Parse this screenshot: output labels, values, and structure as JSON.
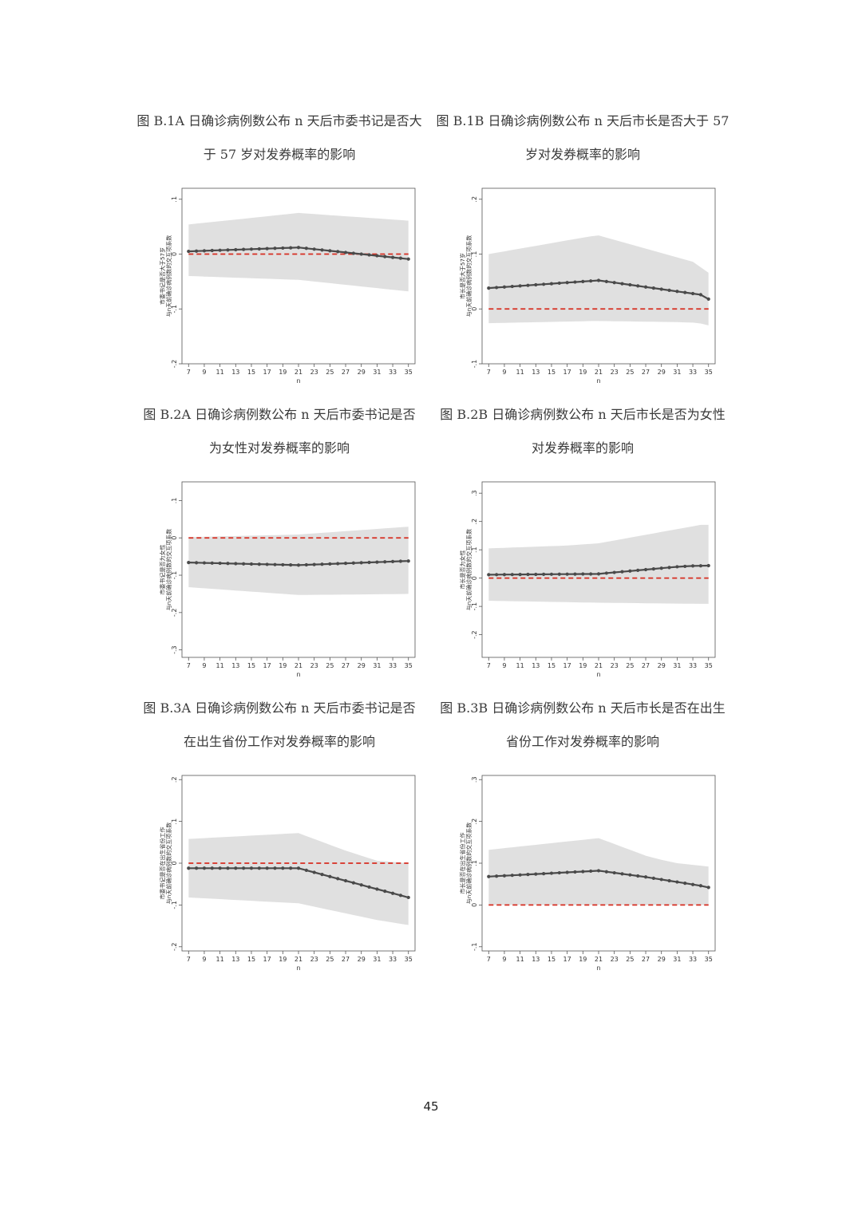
{
  "page_number": "45",
  "colors": {
    "ci_band": "#e0e0e0",
    "line": "#4a4a4a",
    "reference": "#d62d20",
    "frame": "#555555"
  },
  "captions": [
    {
      "line1": "图 B.1A 日确诊病例数公布 n 天后市委书记是否大",
      "line2": "于 57 岁对发券概率的影响"
    },
    {
      "line1": "图 B.1B 日确诊病例数公布 n 天后市长是否大于 57",
      "line2": "岁对发券概率的影响"
    },
    {
      "line1": "图 B.2A  日确诊病例数公布 n 天后市委书记是否",
      "line2": "为女性对发券概率的影响"
    },
    {
      "line1": "图 B.2B  日确诊病例数公布 n 天后市长是否为女性",
      "line2": "对发券概率的影响"
    },
    {
      "line1": "图 B.3A  日确诊病例数公布 n 天后市委书记是否",
      "line2": "在出生省份工作对发券概率的影响"
    },
    {
      "line1": "图 B.3B  日确诊病例数公布 n 天后市长是否在出生",
      "line2": "省份工作对发券概率的影响"
    }
  ],
  "chart_data": [
    {
      "type": "line",
      "xlabel": "n",
      "ylabel": [
        "市委书记是否大于57岁",
        "与n天前确诊病例数的交互项系数"
      ],
      "x": [
        7,
        8,
        9,
        10,
        11,
        12,
        13,
        14,
        15,
        16,
        17,
        18,
        19,
        20,
        21,
        22,
        23,
        24,
        25,
        26,
        27,
        28,
        29,
        30,
        31,
        32,
        33,
        34,
        35
      ],
      "xticks": [
        7,
        9,
        11,
        13,
        15,
        17,
        19,
        21,
        23,
        25,
        27,
        29,
        31,
        33,
        35
      ],
      "ylim": [
        -0.2,
        0.12
      ],
      "yticks": [
        -0.2,
        -0.1,
        0,
        0.1
      ],
      "yticklabels": [
        "-.2",
        "-.1",
        "0",
        ".1"
      ],
      "reference_y": 0,
      "series": [
        {
          "values": [
            0.005,
            0.0055,
            0.006,
            0.0065,
            0.007,
            0.0075,
            0.008,
            0.0085,
            0.009,
            0.0095,
            0.01,
            0.0105,
            0.011,
            0.0115,
            0.012,
            0.0105,
            0.009,
            0.0075,
            0.006,
            0.0045,
            0.003,
            0.0015,
            0.0,
            -0.0015,
            -0.003,
            -0.0045,
            -0.006,
            -0.0075,
            -0.009
          ],
          "lower": [
            -0.04,
            -0.0405,
            -0.041,
            -0.0415,
            -0.042,
            -0.0425,
            -0.043,
            -0.0435,
            -0.044,
            -0.0445,
            -0.045,
            -0.0455,
            -0.046,
            -0.0465,
            -0.047,
            -0.0485,
            -0.05,
            -0.0515,
            -0.053,
            -0.0545,
            -0.056,
            -0.0575,
            -0.059,
            -0.0605,
            -0.062,
            -0.0635,
            -0.065,
            -0.0665,
            -0.068
          ],
          "upper": [
            0.054,
            0.0555,
            0.057,
            0.0585,
            0.06,
            0.0615,
            0.063,
            0.0645,
            0.066,
            0.0675,
            0.069,
            0.0705,
            0.072,
            0.0735,
            0.075,
            0.074,
            0.073,
            0.072,
            0.071,
            0.07,
            0.069,
            0.068,
            0.067,
            0.066,
            0.065,
            0.064,
            0.063,
            0.062,
            0.061
          ]
        }
      ]
    },
    {
      "type": "line",
      "xlabel": "n",
      "ylabel": [
        "市长是否大于57岁",
        "与n天前确诊病例数的交互项系数"
      ],
      "x": [
        7,
        8,
        9,
        10,
        11,
        12,
        13,
        14,
        15,
        16,
        17,
        18,
        19,
        20,
        21,
        22,
        23,
        24,
        25,
        26,
        27,
        28,
        29,
        30,
        31,
        32,
        33,
        34,
        35
      ],
      "xticks": [
        7,
        9,
        11,
        13,
        15,
        17,
        19,
        21,
        23,
        25,
        27,
        29,
        31,
        33,
        35
      ],
      "ylim": [
        -0.1,
        0.22
      ],
      "yticks": [
        -0.1,
        0,
        0.1,
        0.2
      ],
      "yticklabels": [
        "-.1",
        "0",
        ".1",
        ".2"
      ],
      "reference_y": 0,
      "series": [
        {
          "values": [
            0.038,
            0.039,
            0.04,
            0.041,
            0.042,
            0.043,
            0.044,
            0.045,
            0.046,
            0.047,
            0.048,
            0.049,
            0.05,
            0.051,
            0.052,
            0.05,
            0.048,
            0.046,
            0.044,
            0.042,
            0.04,
            0.038,
            0.036,
            0.034,
            0.032,
            0.03,
            0.028,
            0.026,
            0.018
          ],
          "lower": [
            -0.026,
            -0.0257,
            -0.0254,
            -0.0251,
            -0.0248,
            -0.0245,
            -0.0242,
            -0.0239,
            -0.0236,
            -0.0233,
            -0.023,
            -0.0227,
            -0.0224,
            -0.0221,
            -0.022,
            -0.0222,
            -0.0224,
            -0.0226,
            -0.0228,
            -0.023,
            -0.0232,
            -0.0234,
            -0.0236,
            -0.0238,
            -0.024,
            -0.0245,
            -0.025,
            -0.0265,
            -0.03
          ],
          "upper": [
            0.1,
            0.1025,
            0.105,
            0.1075,
            0.11,
            0.1125,
            0.115,
            0.1175,
            0.12,
            0.1225,
            0.125,
            0.1275,
            0.13,
            0.1325,
            0.134,
            0.13,
            0.126,
            0.122,
            0.118,
            0.114,
            0.11,
            0.106,
            0.102,
            0.098,
            0.094,
            0.09,
            0.086,
            0.076,
            0.066
          ]
        }
      ]
    },
    {
      "type": "line",
      "xlabel": "n",
      "ylabel": [
        "市委书记是否为女性",
        "与n天前确诊病例数的交互项系数"
      ],
      "x": [
        7,
        8,
        9,
        10,
        11,
        12,
        13,
        14,
        15,
        16,
        17,
        18,
        19,
        20,
        21,
        22,
        23,
        24,
        25,
        26,
        27,
        28,
        29,
        30,
        31,
        32,
        33,
        34,
        35
      ],
      "xticks": [
        7,
        9,
        11,
        13,
        15,
        17,
        19,
        21,
        23,
        25,
        27,
        29,
        31,
        33,
        35
      ],
      "ylim": [
        -0.32,
        0.15
      ],
      "yticks": [
        -0.3,
        -0.2,
        -0.1,
        0,
        0.1
      ],
      "yticklabels": [
        "-.3",
        "-.2",
        "-.1",
        "0",
        ".1"
      ],
      "reference_y": 0,
      "series": [
        {
          "values": [
            -0.066,
            -0.0665,
            -0.067,
            -0.0675,
            -0.068,
            -0.0685,
            -0.069,
            -0.0695,
            -0.07,
            -0.0705,
            -0.071,
            -0.0715,
            -0.072,
            -0.0725,
            -0.073,
            -0.0722,
            -0.0714,
            -0.0706,
            -0.0698,
            -0.069,
            -0.0682,
            -0.0674,
            -0.0666,
            -0.0658,
            -0.065,
            -0.0642,
            -0.0634,
            -0.0626,
            -0.062
          ],
          "lower": [
            -0.132,
            -0.1335,
            -0.135,
            -0.1365,
            -0.138,
            -0.1395,
            -0.141,
            -0.1425,
            -0.144,
            -0.1455,
            -0.147,
            -0.1485,
            -0.15,
            -0.1515,
            -0.153,
            -0.1528,
            -0.1526,
            -0.1524,
            -0.1522,
            -0.152,
            -0.1518,
            -0.1516,
            -0.1514,
            -0.1512,
            -0.151,
            -0.1508,
            -0.1506,
            -0.1504,
            -0.15
          ],
          "upper": [
            0.002,
            0.0025,
            0.003,
            0.0035,
            0.004,
            0.0045,
            0.005,
            0.0055,
            0.006,
            0.0065,
            0.007,
            0.0075,
            0.008,
            0.0085,
            0.009,
            0.0105,
            0.012,
            0.0135,
            0.015,
            0.0165,
            0.018,
            0.0195,
            0.021,
            0.0225,
            0.024,
            0.0255,
            0.027,
            0.0285,
            0.03
          ]
        }
      ]
    },
    {
      "type": "line",
      "xlabel": "n",
      "ylabel": [
        "市长是否为女性",
        "与n天前确诊病例数的交互项系数"
      ],
      "x": [
        7,
        8,
        9,
        10,
        11,
        12,
        13,
        14,
        15,
        16,
        17,
        18,
        19,
        20,
        21,
        22,
        23,
        24,
        25,
        26,
        27,
        28,
        29,
        30,
        31,
        32,
        33,
        34,
        35
      ],
      "xticks": [
        7,
        9,
        11,
        13,
        15,
        17,
        19,
        21,
        23,
        25,
        27,
        29,
        31,
        33,
        35
      ],
      "ylim": [
        -0.28,
        0.34
      ],
      "yticks": [
        -0.2,
        -0.1,
        0,
        0.1,
        0.2,
        0.3
      ],
      "yticklabels": [
        "-.2",
        "-.1",
        "0",
        ".1",
        ".2",
        ".3"
      ],
      "reference_y": 0,
      "series": [
        {
          "values": [
            0.012,
            0.0122,
            0.0124,
            0.0126,
            0.0128,
            0.013,
            0.0132,
            0.0134,
            0.0136,
            0.0138,
            0.014,
            0.0142,
            0.0144,
            0.0146,
            0.0148,
            0.0175,
            0.02,
            0.0225,
            0.025,
            0.0275,
            0.03,
            0.0325,
            0.035,
            0.0375,
            0.04,
            0.0415,
            0.043,
            0.0435,
            0.044
          ],
          "lower": [
            -0.08,
            -0.0805,
            -0.081,
            -0.0815,
            -0.082,
            -0.0825,
            -0.083,
            -0.0835,
            -0.084,
            -0.0845,
            -0.085,
            -0.0855,
            -0.086,
            -0.0865,
            -0.087,
            -0.0873,
            -0.0876,
            -0.0879,
            -0.0882,
            -0.0885,
            -0.0888,
            -0.0891,
            -0.0894,
            -0.0897,
            -0.09,
            -0.0903,
            -0.0906,
            -0.0909,
            -0.091
          ],
          "upper": [
            0.105,
            0.106,
            0.107,
            0.108,
            0.109,
            0.11,
            0.111,
            0.112,
            0.113,
            0.114,
            0.115,
            0.117,
            0.119,
            0.121,
            0.123,
            0.128,
            0.133,
            0.138,
            0.143,
            0.148,
            0.153,
            0.158,
            0.163,
            0.168,
            0.173,
            0.178,
            0.183,
            0.188,
            0.188
          ]
        }
      ]
    },
    {
      "type": "line",
      "xlabel": "n",
      "ylabel": [
        "市委书记是否在出生省份工作",
        "与n天前确诊病例数的交互项系数"
      ],
      "x": [
        7,
        8,
        9,
        10,
        11,
        12,
        13,
        14,
        15,
        16,
        17,
        18,
        19,
        20,
        21,
        22,
        23,
        24,
        25,
        26,
        27,
        28,
        29,
        30,
        31,
        32,
        33,
        34,
        35
      ],
      "xticks": [
        7,
        9,
        11,
        13,
        15,
        17,
        19,
        21,
        23,
        25,
        27,
        29,
        31,
        33,
        35
      ],
      "ylim": [
        -0.21,
        0.21
      ],
      "yticks": [
        -0.2,
        -0.1,
        0,
        0.1,
        0.2
      ],
      "yticklabels": [
        "-.2",
        "-.1",
        "0",
        ".1",
        ".2"
      ],
      "reference_y": 0,
      "series": [
        {
          "values": [
            -0.012,
            -0.012,
            -0.012,
            -0.012,
            -0.012,
            -0.012,
            -0.012,
            -0.012,
            -0.012,
            -0.012,
            -0.012,
            -0.012,
            -0.012,
            -0.012,
            -0.012,
            -0.017,
            -0.022,
            -0.027,
            -0.032,
            -0.037,
            -0.042,
            -0.047,
            -0.052,
            -0.057,
            -0.062,
            -0.067,
            -0.072,
            -0.077,
            -0.082
          ],
          "lower": [
            -0.082,
            -0.083,
            -0.084,
            -0.085,
            -0.086,
            -0.087,
            -0.088,
            -0.089,
            -0.09,
            -0.091,
            -0.092,
            -0.093,
            -0.094,
            -0.095,
            -0.096,
            -0.1,
            -0.104,
            -0.108,
            -0.112,
            -0.116,
            -0.12,
            -0.124,
            -0.128,
            -0.132,
            -0.136,
            -0.139,
            -0.142,
            -0.145,
            -0.148
          ],
          "upper": [
            0.058,
            0.059,
            0.06,
            0.061,
            0.062,
            0.063,
            0.064,
            0.065,
            0.066,
            0.067,
            0.068,
            0.069,
            0.07,
            0.071,
            0.072,
            0.065,
            0.058,
            0.051,
            0.044,
            0.037,
            0.03,
            0.024,
            0.018,
            0.012,
            0.006,
            0.0045,
            0.003,
            0.0015,
            0.0
          ]
        }
      ]
    },
    {
      "type": "line",
      "xlabel": "n",
      "ylabel": [
        "市长是否在出生省份工作",
        "与n天前确诊病例数的交互项系数"
      ],
      "x": [
        7,
        8,
        9,
        10,
        11,
        12,
        13,
        14,
        15,
        16,
        17,
        18,
        19,
        20,
        21,
        22,
        23,
        24,
        25,
        26,
        27,
        28,
        29,
        30,
        31,
        32,
        33,
        34,
        35
      ],
      "xticks": [
        7,
        9,
        11,
        13,
        15,
        17,
        19,
        21,
        23,
        25,
        27,
        29,
        31,
        33,
        35
      ],
      "ylim": [
        -0.11,
        0.31
      ],
      "yticks": [
        -0.1,
        0,
        0.1,
        0.2,
        0.3
      ],
      "yticklabels": [
        "-.1",
        "0",
        ".1",
        ".2",
        ".3"
      ],
      "reference_y": 0,
      "series": [
        {
          "values": [
            0.068,
            0.069,
            0.07,
            0.071,
            0.072,
            0.073,
            0.074,
            0.075,
            0.076,
            0.077,
            0.078,
            0.079,
            0.08,
            0.081,
            0.082,
            0.0795,
            0.077,
            0.0745,
            0.072,
            0.0695,
            0.067,
            0.064,
            0.061,
            0.058,
            0.055,
            0.052,
            0.049,
            0.046,
            0.042
          ],
          "lower": [
            0.0,
            0.0,
            0.0,
            0.0,
            0.0,
            0.0,
            0.0,
            0.0,
            0.0,
            0.0,
            0.0,
            0.0,
            0.0,
            0.0,
            0.0,
            0.0,
            0.0,
            0.0,
            0.0,
            0.0,
            0.0,
            0.0,
            0.0,
            0.0,
            0.0,
            0.0,
            0.0,
            0.0,
            0.0
          ],
          "upper": [
            0.132,
            0.134,
            0.136,
            0.138,
            0.14,
            0.142,
            0.144,
            0.146,
            0.148,
            0.15,
            0.152,
            0.154,
            0.156,
            0.158,
            0.16,
            0.153,
            0.146,
            0.139,
            0.132,
            0.125,
            0.118,
            0.113,
            0.108,
            0.104,
            0.1,
            0.098,
            0.096,
            0.094,
            0.092
          ]
        }
      ]
    }
  ]
}
